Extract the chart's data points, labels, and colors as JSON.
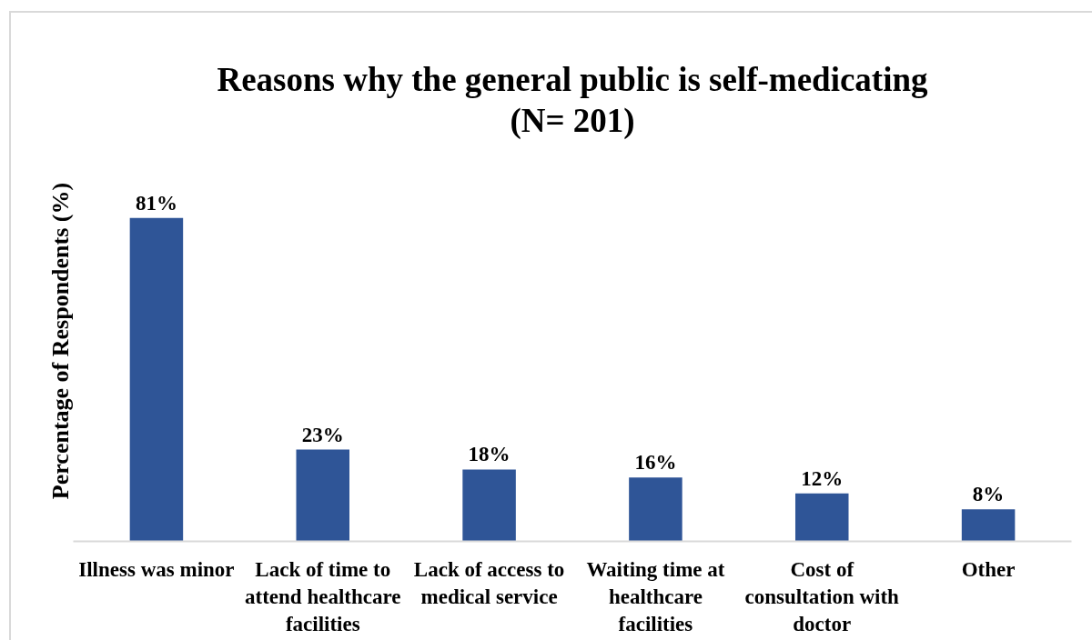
{
  "chart_data": {
    "type": "bar",
    "title": "Reasons why the general public is self-medicating",
    "subtitle": "(N= 201)",
    "ylabel": "Percentage of Respondents (%)",
    "categories": [
      "Illness was minor",
      "Lack of time to attend healthcare facilities",
      "Lack of access to medical service",
      "Waiting time at healthcare facilities",
      "Cost of consultation with doctor",
      "Other"
    ],
    "values": [
      81,
      23,
      18,
      16,
      12,
      8
    ],
    "value_labels": [
      "81%",
      "23%",
      "18%",
      "16%",
      "12%",
      "8%"
    ],
    "color": "#2f5597",
    "tick_labels": "x",
    "grid": false
  }
}
